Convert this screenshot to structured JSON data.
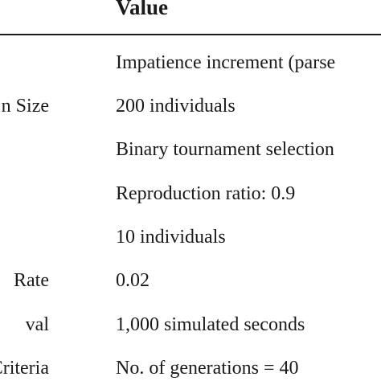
{
  "table": {
    "header": {
      "value": "Value"
    },
    "rows": [
      {
        "parameter": "",
        "value": "Impatience increment (parse"
      },
      {
        "parameter": "n Size",
        "value": "200 individuals"
      },
      {
        "parameter": "",
        "value": "Binary tournament selection"
      },
      {
        "parameter": "",
        "value": "Reproduction ratio: 0.9"
      },
      {
        "parameter": "",
        "value": "10 individuals"
      },
      {
        "parameter": "Rate",
        "value": "0.02"
      },
      {
        "parameter": "val",
        "value": "1,000 simulated seconds"
      },
      {
        "parameter": "on Criteria",
        "value": "No. of generations = 40"
      }
    ]
  }
}
